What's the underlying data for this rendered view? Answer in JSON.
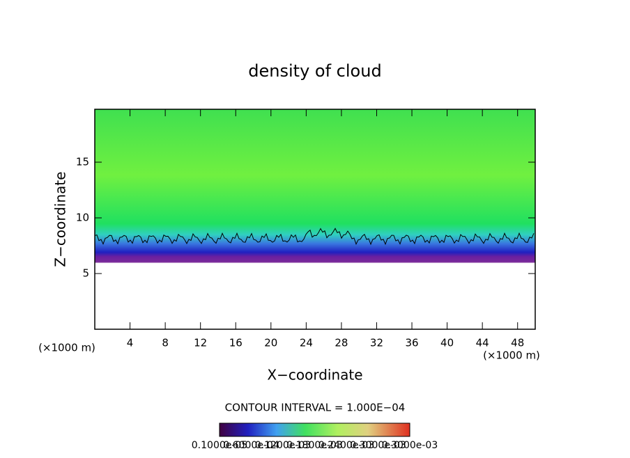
{
  "chart_data": {
    "type": "field",
    "title": "density of cloud",
    "x_label": "X−coordinate",
    "y_label": "Z−coordinate",
    "x_unit_left": "(×1000 m)",
    "x_unit_right": "(×1000 m)",
    "contour_interval": "CONTOUR INTERVAL = 1.000E−04",
    "xlim": [
      0,
      50
    ],
    "xticks": [
      4,
      8,
      12,
      16,
      20,
      24,
      28,
      32,
      36,
      40,
      44,
      48
    ],
    "ylim": [
      0,
      19.75
    ],
    "yticks": [
      5,
      10,
      15
    ],
    "colorbar_labels": [
      "0.1000e-05",
      "0.6000e-04",
      "0.1200e-03",
      "0.1800e-03",
      "0.2400e-03",
      "0.3000e-03",
      "0.3000e-03"
    ]
  }
}
